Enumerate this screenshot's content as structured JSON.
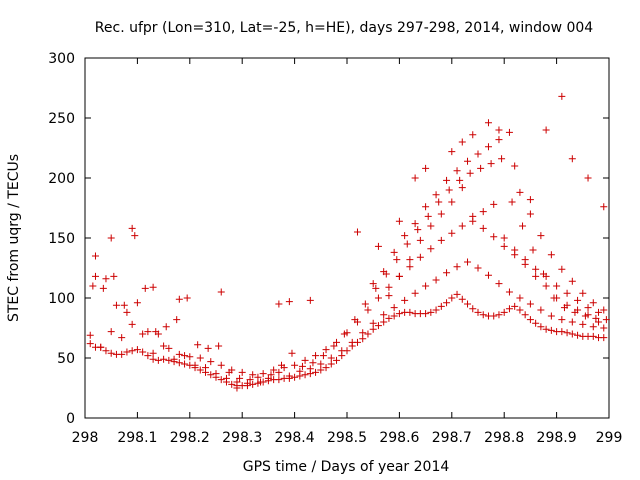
{
  "chart_data": {
    "type": "scatter",
    "title": "Rec. ufpr (Lon=310, Lat=-25, h=HE), days 297-298, 2014, window 004",
    "xlabel": "GPS time / Days of year 2014",
    "ylabel": "STEC from uqrg / TECUs",
    "xlim": [
      298,
      299
    ],
    "ylim": [
      0,
      300
    ],
    "xticks": [
      "298",
      "298.1",
      "298.2",
      "298.3",
      "298.4",
      "298.5",
      "298.6",
      "298.7",
      "298.8",
      "298.9",
      "299"
    ],
    "yticks": [
      "0",
      "50",
      "100",
      "150",
      "200",
      "250",
      "300"
    ],
    "marker": "+",
    "color": "#cc0000",
    "grid": false,
    "series": [
      {
        "name": "STEC",
        "x": [
          298.01,
          298.02,
          298.03,
          298.04,
          298.05,
          298.06,
          298.07,
          298.08,
          298.09,
          298.1,
          298.11,
          298.12,
          298.13,
          298.14,
          298.15,
          298.16,
          298.17,
          298.18,
          298.19,
          298.2,
          298.21,
          298.22,
          298.23,
          298.24,
          298.25,
          298.26,
          298.27,
          298.28,
          298.29,
          298.3,
          298.31,
          298.32,
          298.33,
          298.34,
          298.35,
          298.36,
          298.37,
          298.38,
          298.39,
          298.4,
          298.41,
          298.42,
          298.43,
          298.44,
          298.45,
          298.46,
          298.47,
          298.48,
          298.49,
          298.5,
          298.51,
          298.52,
          298.53,
          298.54,
          298.55,
          298.56,
          298.57,
          298.58,
          298.59,
          298.6,
          298.61,
          298.62,
          298.63,
          298.64,
          298.65,
          298.66,
          298.67,
          298.68,
          298.69,
          298.7,
          298.71,
          298.72,
          298.73,
          298.74,
          298.75,
          298.76,
          298.77,
          298.78,
          298.79,
          298.8,
          298.81,
          298.82,
          298.83,
          298.84,
          298.85,
          298.86,
          298.87,
          298.88,
          298.89,
          298.9,
          298.91,
          298.92,
          298.93,
          298.94,
          298.95,
          298.96,
          298.97,
          298.98,
          298.99,
          298.01,
          298.03,
          298.05,
          298.07,
          298.09,
          298.11,
          298.13,
          298.15,
          298.17,
          298.19,
          298.21,
          298.23,
          298.25,
          298.27,
          298.29,
          298.31,
          298.33,
          298.35,
          298.37,
          298.39,
          298.41,
          298.43,
          298.45,
          298.47,
          298.49,
          298.51,
          298.53,
          298.55,
          298.57,
          298.59,
          298.61,
          298.63,
          298.65,
          298.67,
          298.69,
          298.71,
          298.73,
          298.75,
          298.77,
          298.79,
          298.81,
          298.83,
          298.85,
          298.87,
          298.89,
          298.91,
          298.93,
          298.95,
          298.97,
          298.99,
          298.02,
          298.04,
          298.06,
          298.08,
          298.1,
          298.12,
          298.14,
          298.16,
          298.18,
          298.2,
          298.22,
          298.24,
          298.26,
          298.28,
          298.3,
          298.32,
          298.34,
          298.36,
          298.38,
          298.4,
          298.42,
          298.44,
          298.46,
          298.48,
          298.5,
          298.52,
          298.54,
          298.56,
          298.58,
          298.6,
          298.62,
          298.64,
          298.66,
          298.68,
          298.7,
          298.72,
          298.74,
          298.76,
          298.78,
          298.8,
          298.82,
          298.84,
          298.86,
          298.88,
          298.9,
          298.92,
          298.94,
          298.96,
          298.98,
          298.015,
          298.035,
          298.055,
          298.075,
          298.095,
          298.115,
          298.135,
          298.155,
          298.175,
          298.195,
          298.215,
          298.235,
          298.255,
          298.275,
          298.295,
          298.315,
          298.335,
          298.355,
          298.375,
          298.395,
          298.415,
          298.435,
          298.455,
          298.475,
          298.495,
          298.515,
          298.535,
          298.555,
          298.575,
          298.595,
          298.615,
          298.635,
          298.655,
          298.675,
          298.695,
          298.715,
          298.735,
          298.755,
          298.775,
          298.795,
          298.815,
          298.835,
          298.855,
          298.875,
          298.895,
          298.915,
          298.935,
          298.955,
          298.975,
          298.995,
          298.58,
          298.6,
          298.62,
          298.64,
          298.66,
          298.68,
          298.7,
          298.72,
          298.74,
          298.76,
          298.78,
          298.8,
          298.82,
          298.84,
          298.86,
          298.88,
          298.9,
          298.92,
          298.94,
          298.96,
          298.98,
          298.55,
          298.57,
          298.59,
          298.61,
          298.63,
          298.65,
          298.67,
          298.69,
          298.71,
          298.73,
          298.75,
          298.77,
          298.79,
          298.81,
          298.83,
          298.85,
          298.87,
          298.89,
          298.91,
          298.93,
          298.95,
          298.97,
          298.99,
          298.63,
          298.65,
          298.7,
          298.72,
          298.74,
          298.77,
          298.79,
          298.82,
          298.85,
          298.88,
          298.91,
          298.93,
          298.96,
          298.99,
          298.02,
          298.05,
          298.09,
          298.13,
          298.18,
          298.26,
          298.29,
          298.37,
          298.39,
          298.43,
          298.52,
          298.56,
          298.6
        ],
        "y": [
          62,
          59,
          59,
          56,
          54,
          53,
          53,
          55,
          56,
          57,
          55,
          52,
          49,
          48,
          49,
          48,
          47,
          46,
          45,
          44,
          42,
          40,
          38,
          36,
          34,
          32,
          30,
          28,
          27,
          27,
          27,
          28,
          29,
          30,
          31,
          32,
          32,
          33,
          33,
          34,
          35,
          36,
          37,
          38,
          40,
          42,
          45,
          48,
          52,
          56,
          60,
          63,
          66,
          70,
          74,
          77,
          80,
          83,
          85,
          87,
          88,
          88,
          87,
          87,
          87,
          88,
          90,
          93,
          96,
          100,
          103,
          99,
          95,
          91,
          88,
          86,
          85,
          85,
          86,
          88,
          91,
          93,
          90,
          86,
          82,
          79,
          76,
          74,
          73,
          72,
          72,
          71,
          70,
          69,
          68,
          68,
          68,
          67,
          67,
          69,
          59,
          72,
          67,
          78,
          70,
          54,
          60,
          49,
          52,
          44,
          42,
          37,
          33,
          30,
          29,
          34,
          33,
          38,
          35,
          39,
          41,
          45,
          50,
          56,
          63,
          71,
          79,
          86,
          92,
          98,
          104,
          110,
          115,
          121,
          126,
          130,
          125,
          119,
          112,
          105,
          100,
          95,
          90,
          85,
          82,
          80,
          78,
          76,
          75,
          135,
          116,
          94,
          88,
          96,
          72,
          70,
          58,
          53,
          51,
          50,
          47,
          44,
          40,
          38,
          36,
          37,
          40,
          42,
          44,
          48,
          52,
          57,
          63,
          71,
          80,
          90,
          100,
          109,
          118,
          126,
          134,
          141,
          148,
          154,
          160,
          164,
          158,
          151,
          143,
          136,
          128,
          118,
          110,
          100,
          94,
          90,
          86,
          80,
          110,
          108,
          118,
          94,
          152,
          108,
          72,
          76,
          82,
          100,
          61,
          58,
          60,
          38,
          33,
          32,
          30,
          36,
          44,
          54,
          43,
          46,
          52,
          60,
          70,
          82,
          95,
          108,
          120,
          132,
          145,
          157,
          168,
          180,
          190,
          198,
          204,
          208,
          212,
          216,
          180,
          160,
          140,
          120,
          100,
          92,
          88,
          85,
          83,
          82,
          102,
          118,
          132,
          148,
          160,
          170,
          180,
          192,
          168,
          172,
          178,
          150,
          140,
          132,
          124,
          118,
          110,
          104,
          98,
          92,
          88,
          112,
          122,
          138,
          152,
          162,
          176,
          186,
          198,
          206,
          214,
          220,
          226,
          232,
          238,
          188,
          170,
          152,
          136,
          124,
          114,
          104,
          96,
          90,
          200,
          208,
          222,
          230,
          236,
          246,
          240,
          210,
          182,
          240,
          268,
          216,
          200,
          176,
          118,
          150,
          158,
          109,
          99,
          105,
          25,
          95,
          97,
          98,
          155,
          143,
          164
        ]
      }
    ]
  }
}
